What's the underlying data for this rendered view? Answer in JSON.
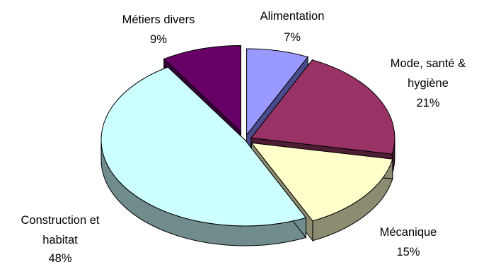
{
  "chart_data": {
    "type": "pie",
    "style": "3d-exploded",
    "unit": "%",
    "slices": [
      {
        "label_lines": [
          "Alimentation"
        ],
        "value": 7,
        "pct_label": "7%",
        "color": "#9999ff",
        "side": "#4b4b8d"
      },
      {
        "label_lines": [
          "Mode, santé &",
          "hygiène"
        ],
        "value": 21,
        "pct_label": "21%",
        "color": "#993366",
        "side": "#4f1c35"
      },
      {
        "label_lines": [
          "Mécanique"
        ],
        "value": 15,
        "pct_label": "15%",
        "color": "#ffffcc",
        "side": "#8c8c70"
      },
      {
        "label_lines": [
          "Construction et",
          "habitat"
        ],
        "value": 48,
        "pct_label": "48%",
        "color": "#ccffff",
        "side": "#708c8c"
      },
      {
        "label_lines": [
          "Métiers divers"
        ],
        "value": 9,
        "pct_label": "9%",
        "color": "#660066",
        "side": "#380038"
      }
    ],
    "legend": "none",
    "data_labels": "category name and percentage"
  }
}
